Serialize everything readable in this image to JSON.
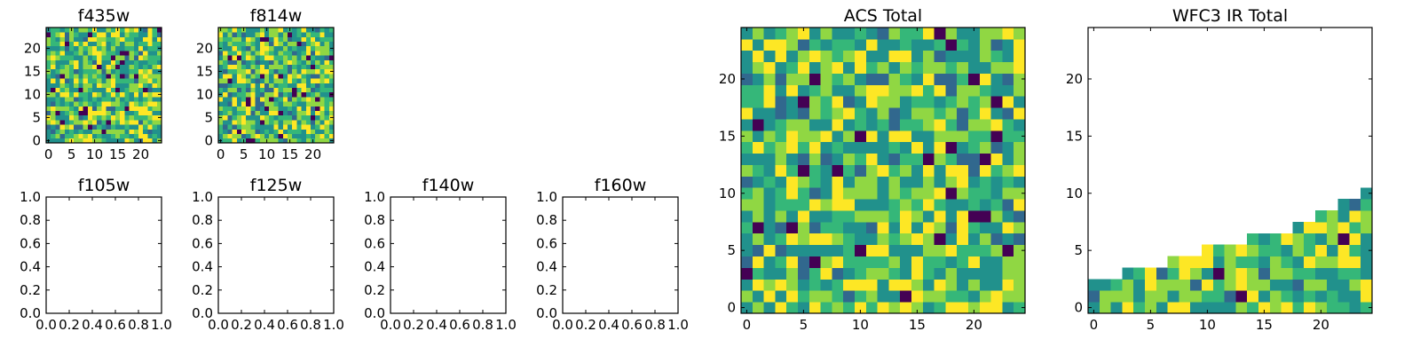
{
  "colormap": [
    "#440154",
    "#31688e",
    "#21918c",
    "#35b779",
    "#90d743",
    "#fde725"
  ],
  "chart_data": [
    {
      "type": "heatmap",
      "title": "f435w",
      "grid_size": 25,
      "fill": "full",
      "seed": 11,
      "xlim": [
        -0.5,
        24.5
      ],
      "ylim": [
        -0.5,
        24.5
      ],
      "xticks": [
        0,
        5,
        10,
        15,
        20
      ],
      "yticks": [
        0,
        5,
        10,
        15,
        20
      ],
      "xtick_labels": [
        "0",
        "5",
        "10",
        "15",
        "20"
      ],
      "ytick_labels": [
        "0",
        "5",
        "10",
        "15",
        "20"
      ]
    },
    {
      "type": "heatmap",
      "title": "f814w",
      "grid_size": 25,
      "fill": "full",
      "seed": 23,
      "xlim": [
        -0.5,
        24.5
      ],
      "ylim": [
        -0.5,
        24.5
      ],
      "xticks": [
        0,
        5,
        10,
        15,
        20
      ],
      "yticks": [
        0,
        5,
        10,
        15,
        20
      ],
      "xtick_labels": [
        "0",
        "5",
        "10",
        "15",
        "20"
      ],
      "ytick_labels": [
        "0",
        "5",
        "10",
        "15",
        "20"
      ]
    },
    {
      "type": "empty",
      "title": "f105w",
      "xlim": [
        0,
        1
      ],
      "ylim": [
        0,
        1
      ],
      "xticks": [
        0,
        0.2,
        0.4,
        0.6,
        0.8,
        1
      ],
      "yticks": [
        0,
        0.2,
        0.4,
        0.6,
        0.8,
        1
      ],
      "xtick_labels": [
        "0.0",
        "0.2",
        "0.4",
        "0.6",
        "0.8",
        "1.0"
      ],
      "ytick_labels": [
        "0.0",
        "0.2",
        "0.4",
        "0.6",
        "0.8",
        "1.0"
      ]
    },
    {
      "type": "empty",
      "title": "f125w",
      "xlim": [
        0,
        1
      ],
      "ylim": [
        0,
        1
      ],
      "xticks": [
        0,
        0.2,
        0.4,
        0.6,
        0.8,
        1
      ],
      "yticks": [
        0,
        0.2,
        0.4,
        0.6,
        0.8,
        1
      ],
      "xtick_labels": [
        "0.0",
        "0.2",
        "0.4",
        "0.6",
        "0.8",
        "1.0"
      ],
      "ytick_labels": [
        "0.0",
        "0.2",
        "0.4",
        "0.6",
        "0.8",
        "1.0"
      ]
    },
    {
      "type": "empty",
      "title": "f140w",
      "xlim": [
        0,
        1
      ],
      "ylim": [
        0,
        1
      ],
      "xticks": [
        0,
        0.2,
        0.4,
        0.6,
        0.8,
        1
      ],
      "yticks": [
        0,
        0.2,
        0.4,
        0.6,
        0.8,
        1
      ],
      "xtick_labels": [
        "0.0",
        "0.2",
        "0.4",
        "0.6",
        "0.8",
        "1.0"
      ],
      "ytick_labels": [
        "0.0",
        "0.2",
        "0.4",
        "0.6",
        "0.8",
        "1.0"
      ]
    },
    {
      "type": "empty",
      "title": "f160w",
      "xlim": [
        0,
        1
      ],
      "ylim": [
        0,
        1
      ],
      "xticks": [
        0,
        0.2,
        0.4,
        0.6,
        0.8,
        1
      ],
      "yticks": [
        0,
        0.2,
        0.4,
        0.6,
        0.8,
        1
      ],
      "xtick_labels": [
        "0.0",
        "0.2",
        "0.4",
        "0.6",
        "0.8",
        "1.0"
      ],
      "ytick_labels": [
        "0.0",
        "0.2",
        "0.4",
        "0.6",
        "0.8",
        "1.0"
      ]
    },
    {
      "type": "heatmap",
      "title": "ACS Total",
      "grid_size": 25,
      "fill": "full",
      "seed": 37,
      "xlim": [
        -0.5,
        24.5
      ],
      "ylim": [
        -0.5,
        24.5
      ],
      "xticks": [
        0,
        5,
        10,
        15,
        20
      ],
      "yticks": [
        0,
        5,
        10,
        15,
        20
      ],
      "xtick_labels": [
        "0",
        "5",
        "10",
        "15",
        "20"
      ],
      "ytick_labels": [
        "0",
        "5",
        "10",
        "15",
        "20"
      ]
    },
    {
      "type": "heatmap",
      "title": "WFC3 IR Total",
      "grid_size": 25,
      "fill": "column_heights",
      "column_heights": [
        3,
        3,
        3,
        4,
        4,
        4,
        4,
        5,
        5,
        5,
        6,
        6,
        6,
        6,
        7,
        7,
        7,
        7,
        8,
        8,
        9,
        9,
        10,
        10,
        11
      ],
      "seed": 53,
      "xlim": [
        -0.5,
        24.5
      ],
      "ylim": [
        -0.5,
        24.5
      ],
      "xticks": [
        0,
        5,
        10,
        15,
        20
      ],
      "yticks": [
        0,
        5,
        10,
        15,
        20
      ],
      "xtick_labels": [
        "0",
        "5",
        "10",
        "15",
        "20"
      ],
      "ytick_labels": [
        "0",
        "5",
        "10",
        "15",
        "20"
      ]
    }
  ]
}
